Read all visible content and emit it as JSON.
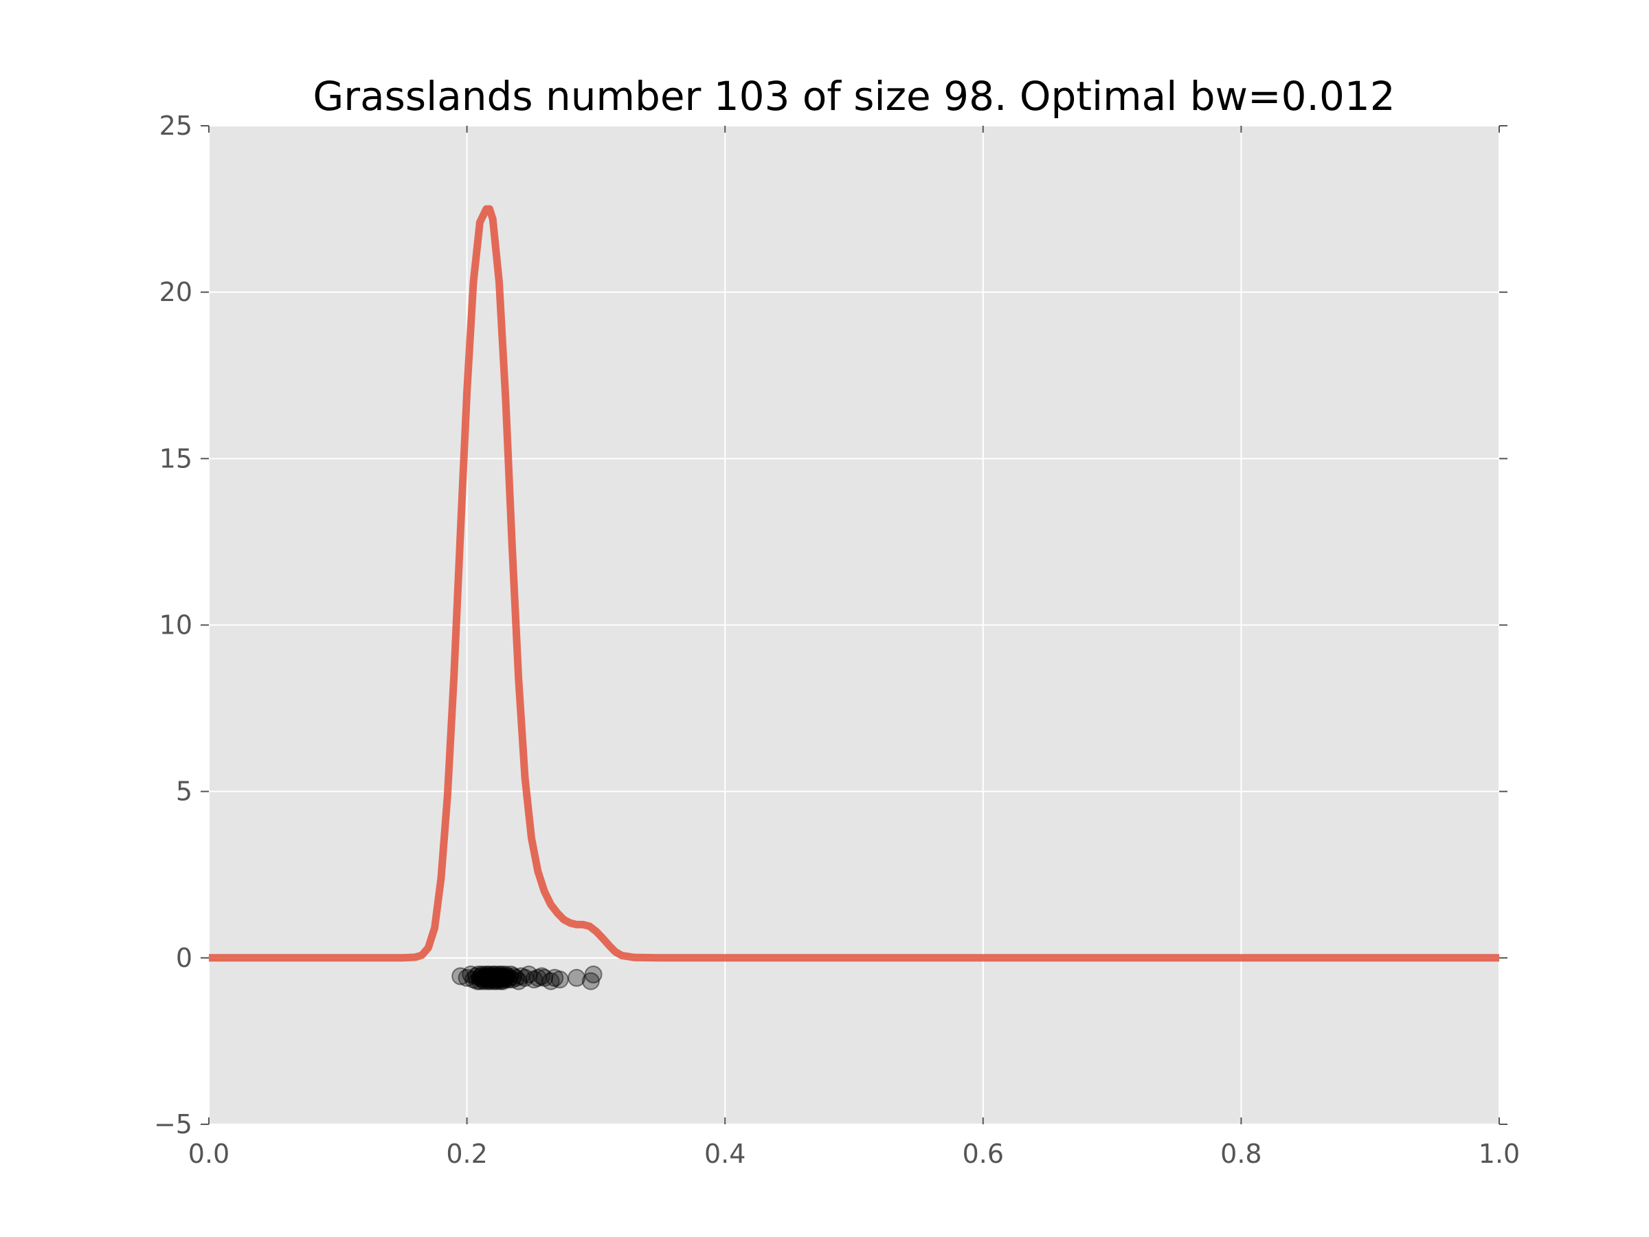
{
  "chart_data": {
    "type": "line",
    "title": "Grasslands number 103 of size 98. Optimal bw=0.012",
    "xlabel": "",
    "ylabel": "",
    "xlim": [
      0.0,
      1.0
    ],
    "ylim": [
      -5,
      25
    ],
    "xticks": [
      0.0,
      0.2,
      0.4,
      0.6,
      0.8,
      1.0
    ],
    "xtick_labels": [
      "0.0",
      "0.2",
      "0.4",
      "0.6",
      "0.8",
      "1.0"
    ],
    "yticks": [
      -5,
      0,
      5,
      10,
      15,
      20,
      25
    ],
    "ytick_labels": [
      "−5",
      "0",
      "5",
      "10",
      "15",
      "20",
      "25"
    ],
    "grid": true,
    "legend": "none",
    "series": [
      {
        "kind": "line",
        "color": "#E24A33",
        "x": [
          0.0,
          0.15,
          0.16,
          0.165,
          0.17,
          0.175,
          0.18,
          0.185,
          0.19,
          0.195,
          0.2,
          0.205,
          0.21,
          0.215,
          0.2175,
          0.22,
          0.225,
          0.23,
          0.235,
          0.24,
          0.245,
          0.25,
          0.255,
          0.26,
          0.265,
          0.27,
          0.275,
          0.28,
          0.285,
          0.29,
          0.295,
          0.3,
          0.305,
          0.31,
          0.315,
          0.32,
          0.33,
          0.35,
          0.5,
          1.0
        ],
        "y": [
          0.0,
          0.0,
          0.02,
          0.08,
          0.3,
          0.9,
          2.4,
          4.9,
          8.5,
          12.8,
          17.0,
          20.3,
          22.1,
          22.5,
          22.5,
          22.2,
          20.3,
          16.8,
          12.4,
          8.4,
          5.4,
          3.6,
          2.6,
          2.0,
          1.6,
          1.35,
          1.15,
          1.05,
          1.0,
          1.0,
          0.95,
          0.8,
          0.6,
          0.38,
          0.18,
          0.07,
          0.01,
          0.0,
          0.0,
          0.0
        ]
      },
      {
        "kind": "scatter",
        "color": "#000000",
        "alpha": 0.3,
        "x": [
          0.195,
          0.2,
          0.203,
          0.205,
          0.207,
          0.208,
          0.209,
          0.21,
          0.21,
          0.211,
          0.212,
          0.212,
          0.213,
          0.213,
          0.214,
          0.214,
          0.215,
          0.215,
          0.216,
          0.216,
          0.217,
          0.217,
          0.218,
          0.218,
          0.219,
          0.219,
          0.22,
          0.22,
          0.221,
          0.221,
          0.222,
          0.222,
          0.223,
          0.223,
          0.224,
          0.224,
          0.225,
          0.225,
          0.226,
          0.226,
          0.227,
          0.227,
          0.228,
          0.228,
          0.229,
          0.229,
          0.23,
          0.23,
          0.231,
          0.232,
          0.233,
          0.234,
          0.235,
          0.236,
          0.238,
          0.24,
          0.242,
          0.245,
          0.248,
          0.252,
          0.255,
          0.258,
          0.26,
          0.265,
          0.268,
          0.272,
          0.285,
          0.296,
          0.298
        ],
        "y": [
          -0.55,
          -0.6,
          -0.5,
          -0.65,
          -0.55,
          -0.7,
          -0.5,
          -0.6,
          -0.7,
          -0.55,
          -0.5,
          -0.65,
          -0.6,
          -0.7,
          -0.55,
          -0.65,
          -0.5,
          -0.6,
          -0.7,
          -0.55,
          -0.65,
          -0.5,
          -0.6,
          -0.7,
          -0.55,
          -0.65,
          -0.5,
          -0.6,
          -0.7,
          -0.55,
          -0.65,
          -0.5,
          -0.6,
          -0.7,
          -0.55,
          -0.65,
          -0.5,
          -0.6,
          -0.7,
          -0.55,
          -0.65,
          -0.5,
          -0.6,
          -0.7,
          -0.55,
          -0.65,
          -0.5,
          -0.6,
          -0.55,
          -0.65,
          -0.6,
          -0.5,
          -0.65,
          -0.55,
          -0.6,
          -0.7,
          -0.55,
          -0.6,
          -0.5,
          -0.65,
          -0.6,
          -0.55,
          -0.6,
          -0.7,
          -0.6,
          -0.65,
          -0.6,
          -0.7,
          -0.5
        ]
      }
    ]
  }
}
